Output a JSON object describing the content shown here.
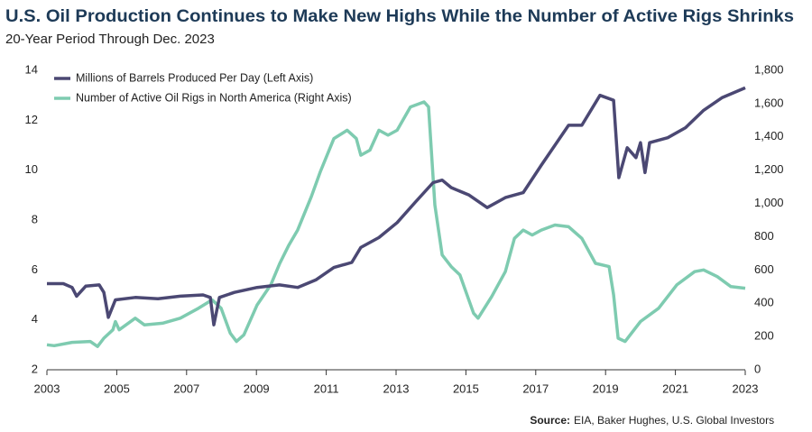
{
  "chart_data": {
    "type": "line",
    "title": "U.S. Oil Production Continues to Make New Highs While the Number of Active Rigs Shrinks",
    "subtitle": "20-Year Period Through Dec. 2023",
    "source_label": "Source:",
    "source": "EIA, Baker Hughes, U.S. Global Investors",
    "legend": "upper left",
    "xlim": [
      2003,
      2023
    ],
    "xticks": [
      2003,
      2005,
      2007,
      2009,
      2011,
      2013,
      2015,
      2017,
      2019,
      2021,
      2023
    ],
    "ylim": [
      2,
      14
    ],
    "yticks": [
      2,
      4,
      6,
      8,
      10,
      12,
      14
    ],
    "y2lim": [
      0,
      1800
    ],
    "y2ticks": [
      0,
      200,
      400,
      600,
      800,
      {
        "value": 1000,
        "label": "1,000"
      },
      {
        "value": 1200,
        "label": "1,200"
      },
      {
        "value": 1400,
        "label": "1,400"
      },
      {
        "value": 1600,
        "label": "1,600"
      },
      {
        "value": 1800,
        "label": "1,800"
      }
    ],
    "series": [
      {
        "name": "Millions of Barrels Produced Per Day (Left Axis)",
        "color": "#4b4873",
        "axis": "y",
        "x": [
          2003.0,
          2003.47,
          2003.72,
          2003.85,
          2004.11,
          2004.5,
          2004.63,
          2004.76,
          2004.96,
          2005.53,
          2006.18,
          2006.82,
          2007.47,
          2007.68,
          2007.78,
          2007.94,
          2008.37,
          2009.02,
          2009.66,
          2010.18,
          2010.7,
          2011.22,
          2011.73,
          2011.99,
          2012.51,
          2013.03,
          2013.54,
          2014.06,
          2014.32,
          2014.58,
          2015.09,
          2015.61,
          2016.13,
          2016.64,
          2017.16,
          2017.55,
          2017.94,
          2018.32,
          2018.84,
          2019.23,
          2019.38,
          2019.62,
          2019.87,
          2020.0,
          2020.13,
          2020.26,
          2020.78,
          2021.29,
          2021.81,
          2022.33,
          2023.0
        ],
        "values": [
          5.45,
          5.45,
          5.3,
          4.95,
          5.35,
          5.4,
          5.1,
          4.1,
          4.8,
          4.9,
          4.85,
          4.95,
          5.0,
          4.9,
          3.8,
          4.9,
          5.1,
          5.3,
          5.4,
          5.3,
          5.6,
          6.1,
          6.3,
          6.9,
          7.3,
          7.9,
          8.7,
          9.5,
          9.6,
          9.3,
          9.0,
          8.5,
          8.9,
          9.1,
          10.2,
          11.0,
          11.8,
          11.8,
          13.0,
          12.8,
          9.7,
          10.9,
          10.5,
          11.1,
          9.9,
          11.1,
          11.3,
          11.7,
          12.4,
          12.9,
          13.3
        ]
      },
      {
        "name": "Number of Active Oil Rigs in North America (Right Axis)",
        "color": "#7ecbb0",
        "axis": "y2",
        "x": [
          2003.0,
          2003.21,
          2003.72,
          2004.24,
          2004.45,
          2004.63,
          2004.89,
          2004.96,
          2005.07,
          2005.53,
          2005.79,
          2006.31,
          2006.82,
          2007.34,
          2007.73,
          2007.99,
          2008.25,
          2008.43,
          2008.64,
          2009.02,
          2009.41,
          2009.67,
          2009.93,
          2010.18,
          2010.57,
          2010.83,
          2011.22,
          2011.6,
          2011.86,
          2011.99,
          2012.25,
          2012.51,
          2012.77,
          2013.03,
          2013.41,
          2013.8,
          2013.93,
          2014.11,
          2014.32,
          2014.58,
          2014.83,
          2015.22,
          2015.35,
          2015.74,
          2016.13,
          2016.39,
          2016.64,
          2016.9,
          2017.16,
          2017.55,
          2017.94,
          2018.32,
          2018.71,
          2019.1,
          2019.23,
          2019.36,
          2019.56,
          2020.0,
          2020.52,
          2021.04,
          2021.55,
          2021.81,
          2022.2,
          2022.59,
          2023.0
        ],
        "values": [
          150,
          145,
          165,
          170,
          140,
          190,
          240,
          290,
          240,
          310,
          270,
          280,
          310,
          370,
          420,
          370,
          220,
          170,
          210,
          390,
          510,
          640,
          750,
          840,
          1040,
          1190,
          1390,
          1440,
          1390,
          1290,
          1320,
          1440,
          1410,
          1440,
          1580,
          1610,
          1580,
          990,
          690,
          620,
          570,
          340,
          310,
          440,
          590,
          790,
          840,
          810,
          840,
          870,
          860,
          790,
          640,
          620,
          450,
          190,
          170,
          290,
          370,
          510,
          590,
          600,
          560,
          500,
          490
        ]
      }
    ]
  }
}
